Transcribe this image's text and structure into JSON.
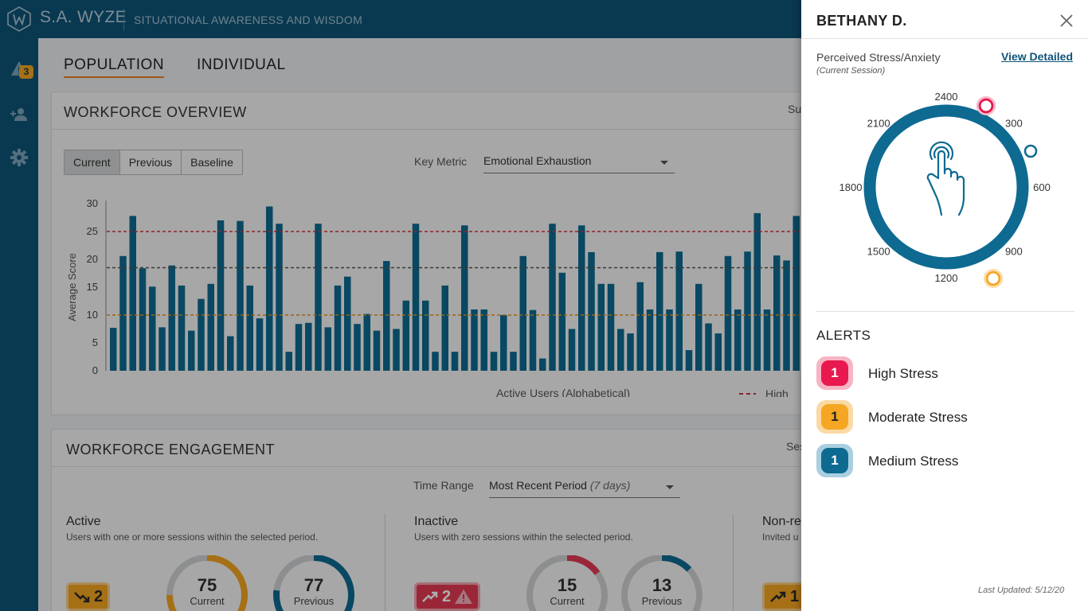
{
  "header": {
    "brand": "S.A. WYZE",
    "tagline": "SITUATIONAL AWARENESS AND WISDOM"
  },
  "nav": {
    "alert_count": "3",
    "icons": [
      "warning-icon",
      "add-user-icon",
      "gear-icon"
    ]
  },
  "tabs": [
    {
      "label": "POPULATION",
      "active": true
    },
    {
      "label": "INDIVIDUAL",
      "active": false
    }
  ],
  "overview": {
    "title": "WORKFORCE OVERVIEW",
    "right_text": "Su",
    "periods": [
      "Current",
      "Previous",
      "Baseline"
    ],
    "selected_period": "Current",
    "key_metric_label": "Key Metric",
    "key_metric_value": "Emotional Exhaustion"
  },
  "chart_data": {
    "type": "bar",
    "ylabel": "Average Score",
    "xlabel": "Active Users (Alphabetical)",
    "ylim": [
      0,
      30
    ],
    "yticks": [
      0,
      5,
      10,
      15,
      20,
      25,
      30
    ],
    "thresholds": [
      {
        "value": 25,
        "color": "#d0343a"
      },
      {
        "value": 18.5,
        "color": "#555555"
      },
      {
        "value": 10,
        "color": "#e8941e"
      }
    ],
    "legend": [
      {
        "label": "High",
        "color": "#d0343a"
      }
    ],
    "values": [
      7.7,
      20.6,
      27.8,
      18.4,
      15.1,
      7.8,
      18.9,
      15.3,
      7.2,
      12.9,
      15.6,
      27,
      6.2,
      26.9,
      15.3,
      9.4,
      29.5,
      26.4,
      3.4,
      8.4,
      8.6,
      26.4,
      7.8,
      15.3,
      16.9,
      8.4,
      10.2,
      7.2,
      19.7,
      7.5,
      12.6,
      26.4,
      12.6,
      3.4,
      15.3,
      3.4,
      26.1,
      11,
      11,
      3.4,
      10,
      3.4,
      20.6,
      10.9,
      2.2,
      26.4,
      17.6,
      7.5,
      26.1,
      21.3,
      15.6,
      15.6,
      7.5,
      6.7,
      15.9,
      11,
      21.3,
      11,
      21.4,
      3.7,
      15.6,
      8.5,
      6.7,
      20.6,
      11,
      21.4,
      28.3,
      11,
      20.7,
      19.8,
      27.8
    ]
  },
  "engagement": {
    "title": "WORKFORCE ENGAGEMENT",
    "right_text": "Ses",
    "time_range_label": "Time Range",
    "time_range_value": "Most Recent Period",
    "time_range_suffix": "(7 days)",
    "columns": [
      {
        "title": "Active",
        "subtitle": "Users with one or more sessions within the selected period.",
        "trend": "2",
        "current": "75",
        "current_label": "Current",
        "previous": "77",
        "previous_label": "Previous",
        "current_fraction": 0.75,
        "previous_fraction": 0.77
      },
      {
        "title": "Inactive",
        "subtitle": "Users with zero sessions within the selected period.",
        "trend": "2",
        "current": "15",
        "current_label": "Current",
        "previous": "13",
        "previous_label": "Previous",
        "current_fraction": 0.15,
        "previous_fraction": 0.13
      },
      {
        "title": "Non-re",
        "subtitle": "Invited u",
        "trend": "1"
      }
    ]
  },
  "drawer": {
    "name": "BETHANY D.",
    "metric": "Perceived Stress/Anxiety",
    "session": "(Current Session)",
    "view_link": "View Detailed",
    "clock_labels": [
      "2400",
      "300",
      "600",
      "900",
      "1200",
      "1500",
      "1800",
      "2100"
    ],
    "alerts_title": "ALERTS",
    "alerts": [
      {
        "count": "1",
        "label": "High Stress",
        "color": "#e8194f",
        "ring": "#f7b4c3"
      },
      {
        "count": "1",
        "label": "Moderate Stress",
        "color": "#f5a623",
        "ring": "#fbd9a3"
      },
      {
        "count": "1",
        "label": "Medium Stress",
        "color": "#0e6a91",
        "ring": "#a9cfe0"
      }
    ],
    "last_updated": "Last Updated: 5/12/20"
  }
}
